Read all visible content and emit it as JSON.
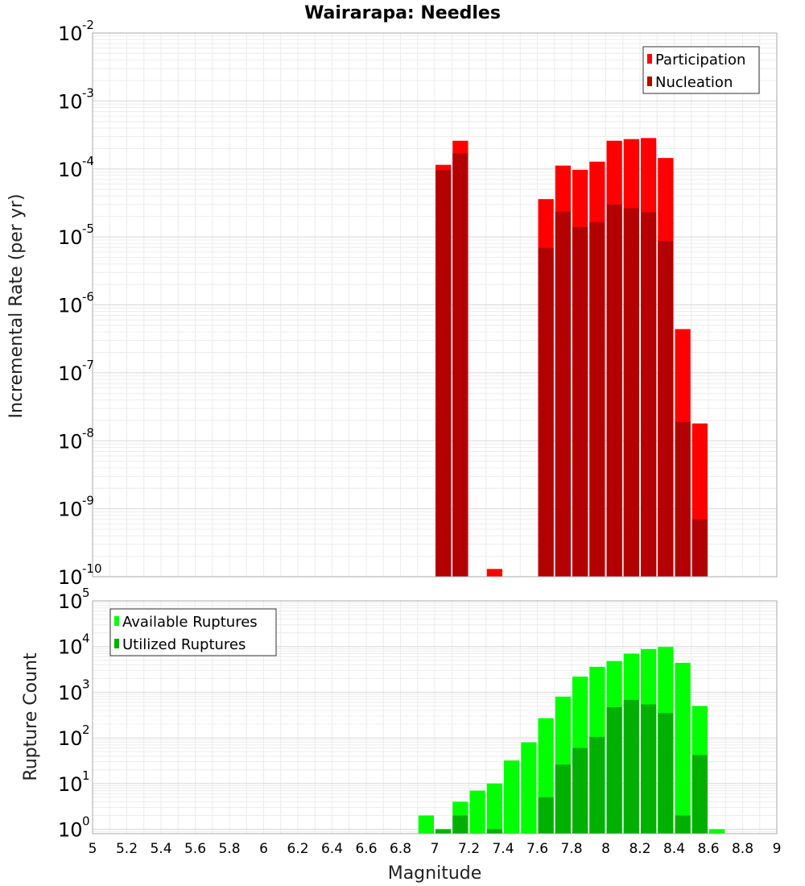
{
  "title": "Wairarapa: Needles",
  "chart_data": [
    {
      "type": "bar",
      "subplot": "top",
      "ylabel": "Incremental Rate (per yr)",
      "yscale": "log",
      "ylim": [
        1e-10,
        0.01
      ],
      "xlim": [
        5,
        9
      ],
      "bin_width": 0.1,
      "grid": true,
      "legend_position": "top-right",
      "series": [
        {
          "name": "Participation",
          "color": "#ff0000",
          "x": [
            7.05,
            7.15,
            7.35,
            7.65,
            7.75,
            7.85,
            7.95,
            8.05,
            8.15,
            8.25,
            8.35,
            8.45,
            8.55
          ],
          "values": [
            0.000115,
            0.00026,
            1.3e-10,
            3.6e-05,
            0.000112,
            9.7e-05,
            0.000128,
            0.00026,
            0.000275,
            0.000285,
            0.000145,
            4.4e-07,
            1.8e-08
          ]
        },
        {
          "name": "Nucleation",
          "color": "#b30000",
          "x": [
            7.05,
            7.15,
            7.65,
            7.75,
            7.85,
            7.95,
            8.05,
            8.15,
            8.25,
            8.35,
            8.45,
            8.55
          ],
          "values": [
            9.6e-05,
            0.00017,
            6.9e-06,
            2.35e-05,
            1.4e-05,
            1.65e-05,
            3e-05,
            2.65e-05,
            2.3e-05,
            8.7e-06,
            1.9e-08,
            7e-10
          ]
        }
      ]
    },
    {
      "type": "bar",
      "subplot": "bottom",
      "ylabel": "Rupture Count",
      "xlabel": "Magnitude",
      "yscale": "log",
      "ylim": [
        0.8,
        100000.0
      ],
      "xlim": [
        5,
        9
      ],
      "bin_width": 0.1,
      "grid": true,
      "legend_position": "top-left",
      "x_ticks": [
        "5",
        "5.2",
        "5.4",
        "5.6",
        "5.8",
        "6",
        "6.2",
        "6.4",
        "6.6",
        "6.8",
        "7",
        "7.2",
        "7.4",
        "7.6",
        "7.8",
        "8",
        "8.2",
        "8.4",
        "8.6",
        "8.8",
        "9"
      ],
      "series": [
        {
          "name": "Available Ruptures",
          "color": "#00ff00",
          "x": [
            6.95,
            7.05,
            7.15,
            7.25,
            7.35,
            7.45,
            7.55,
            7.65,
            7.75,
            7.85,
            7.95,
            8.05,
            8.15,
            8.25,
            8.35,
            8.45,
            8.55,
            8.65
          ],
          "values": [
            2,
            1,
            4,
            7,
            10,
            32,
            80,
            270,
            800,
            2200,
            3600,
            4800,
            7000,
            8800,
            9800,
            4400,
            500,
            1
          ]
        },
        {
          "name": "Utilized Ruptures",
          "color": "#00b000",
          "x": [
            7.05,
            7.15,
            7.35,
            7.65,
            7.75,
            7.85,
            7.95,
            8.05,
            8.15,
            8.25,
            8.35,
            8.45,
            8.55
          ],
          "values": [
            1,
            2,
            1,
            5,
            26,
            60,
            105,
            470,
            680,
            540,
            350,
            2,
            42
          ]
        }
      ]
    }
  ]
}
